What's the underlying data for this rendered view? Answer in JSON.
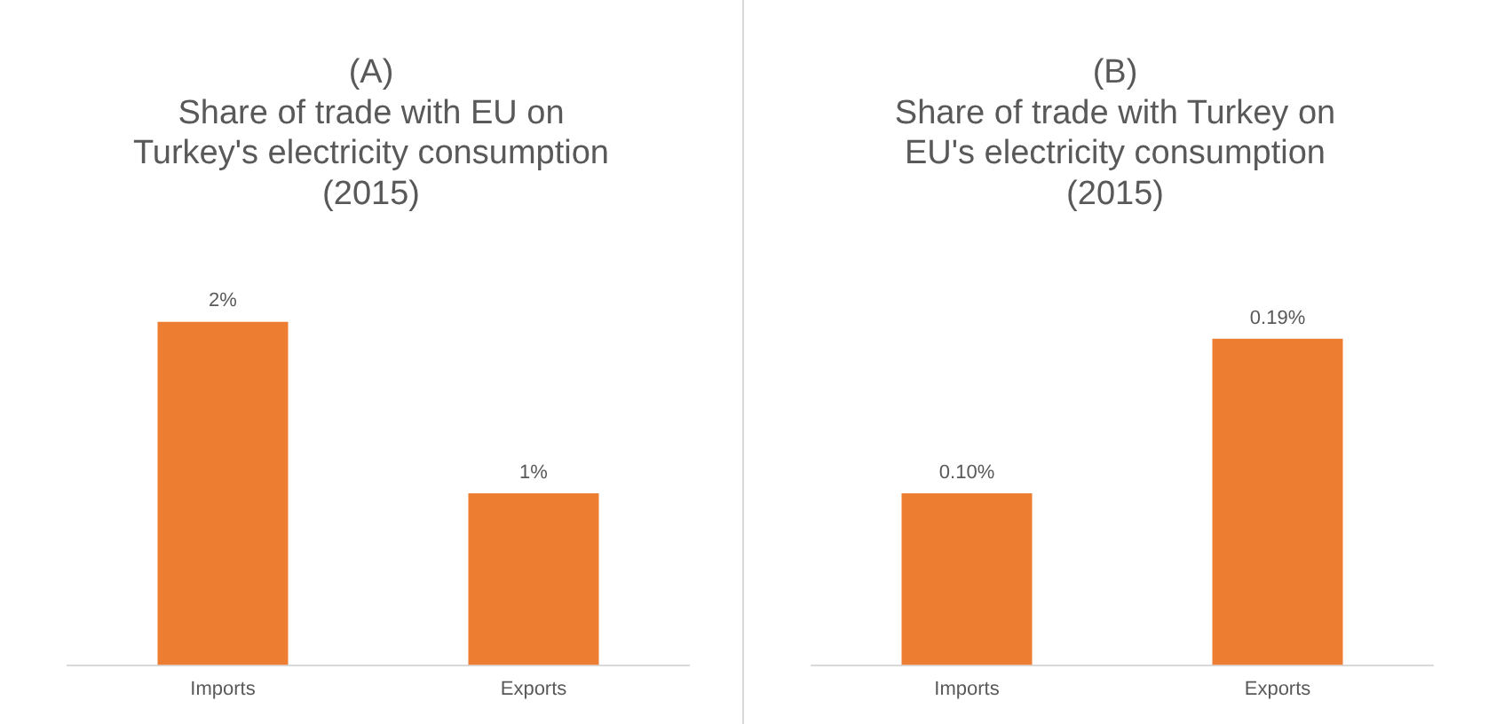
{
  "chart_data": [
    {
      "type": "bar",
      "title": "(A)\nShare of trade with EU on\nTurkey's electricity consumption\n(2015)",
      "categories": [
        "Imports",
        "Exports"
      ],
      "values": [
        2,
        1
      ],
      "value_labels": [
        "2%",
        "1%"
      ],
      "color": "#ed7d31",
      "tick_labels": "x",
      "grid": false,
      "legend": false
    },
    {
      "type": "bar",
      "title": "(B)\nShare of trade with Turkey on\nEU's electricity consumption\n(2015)",
      "categories": [
        "Imports",
        "Exports"
      ],
      "values": [
        0.1,
        0.19
      ],
      "value_labels": [
        "0.10%",
        "0.19%"
      ],
      "color": "#ed7d31",
      "tick_labels": "x",
      "grid": false,
      "legend": false
    }
  ]
}
